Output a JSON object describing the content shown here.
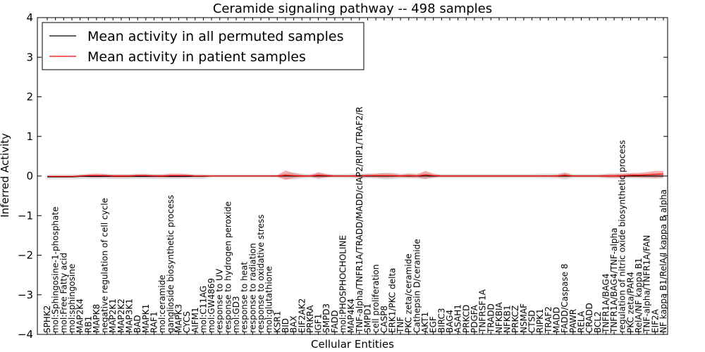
{
  "chart_data": {
    "type": "line",
    "title": "Ceramide signaling pathway -- 498 samples",
    "xlabel": "Cellular Entities",
    "ylabel": "Inferred Activity",
    "ylim": [
      -4,
      4
    ],
    "yticks": [
      "−4",
      "−3",
      "−2",
      "−1",
      "0",
      "1",
      "2",
      "3",
      "4"
    ],
    "legend_position": "top-left",
    "categories": [
      "SPHK2",
      "mol:Sphingosine-1-phosphate",
      "mol:Free Fatty acid",
      "mol:sphingosine",
      "MAP2K4",
      "RB1",
      "MAPK8",
      "negative regulation of cell cycle",
      "MAP2K1",
      "MAP2K2",
      "MAP3K1",
      "BAD",
      "MAPK1",
      "RAF1",
      "mol:ceramide",
      "ganglioside biosynthetic process",
      "MAPK3",
      "CYCS",
      "AIFM1",
      "mol:C11AG",
      "mol:GW4869",
      "response to UV",
      "response to hydrogen peroxide",
      "mol:GD3",
      "response to heat",
      "response to radiation",
      "response to oxidative stress",
      "mol:glutathione",
      "KSR1",
      "BID",
      "BAX",
      "EIF2AK2",
      "PRKRA",
      "IGF1",
      "SMPD3",
      "FADD",
      "mol:PHOSPHOCHOLINE",
      "MAP4K4",
      "TNF-alpha/TNFR1A/TRADD/MADD/cIAP2/RIP1/TRAF2/R",
      "SMPD1",
      "cell proliferation",
      "CASP8",
      "ERK1/PKC delta",
      "TNF",
      "PKC zeta/ceramide",
      "Cathepsin D/ceramide",
      "AKT1",
      "EGF",
      "BIRC3",
      "BAG4",
      "ASAH1",
      "PRKCD",
      "PDGFA",
      "TNFRSF1A",
      "TRADD",
      "NFKBIA",
      "NFKB1",
      "PRKCZ",
      "NSMAF",
      "CTSD",
      "RIPK1",
      "TRAF2",
      "MADD",
      "FADD/Caspase 8",
      "PAWR",
      "RELA",
      "CRADD",
      "BCL2",
      "TNFR1A/BAG4",
      "TNFR1A/BAG4/TNF-alpha",
      "regulation of nitric oxide biosynthetic process",
      "PKC zeta/PAR4",
      "RelA/NF kappa B1",
      "TNF-alpha/TNFR1A/FAN",
      "EIF2A",
      "NF kappa B1/RelA/I kappa B alpha"
    ],
    "series": [
      {
        "name": "Mean activity in all permuted samples",
        "color": "#000000",
        "values": [
          -0.02,
          -0.02,
          -0.02,
          -0.02,
          -0.01,
          -0.01,
          -0.01,
          -0.01,
          -0.01,
          -0.01,
          -0.01,
          -0.01,
          -0.01,
          -0.01,
          -0.01,
          -0.01,
          -0.01,
          -0.01,
          -0.01,
          -0.01,
          0.0,
          0.0,
          0.0,
          0.0,
          0.0,
          0.0,
          0.0,
          0.0,
          0.0,
          0.0,
          0.0,
          0.0,
          0.0,
          0.0,
          0.0,
          0.0,
          0.0,
          0.0,
          0.0,
          0.0,
          0.0,
          0.0,
          0.0,
          0.0,
          0.0,
          0.0,
          0.0,
          0.0,
          0.0,
          0.0,
          0.0,
          0.0,
          0.0,
          0.0,
          0.0,
          0.0,
          0.0,
          0.0,
          0.0,
          0.0,
          0.0,
          0.0,
          0.0,
          0.0,
          0.0,
          0.0,
          0.0,
          0.0,
          0.0,
          0.0,
          0.0,
          0.0,
          0.0,
          0.0,
          0.0,
          0.0
        ],
        "band": [
          0.06,
          0.06,
          0.06,
          0.06,
          0.06,
          0.06,
          0.06,
          0.06,
          0.06,
          0.06,
          0.06,
          0.06,
          0.06,
          0.06,
          0.06,
          0.06,
          0.06,
          0.06,
          0.06,
          0.06,
          0.04,
          0.04,
          0.04,
          0.04,
          0.04,
          0.04,
          0.04,
          0.04,
          0.04,
          0.07,
          0.09,
          0.06,
          0.05,
          0.07,
          0.05,
          0.05,
          0.05,
          0.06,
          0.06,
          0.06,
          0.06,
          0.08,
          0.08,
          0.06,
          0.06,
          0.06,
          0.08,
          0.05,
          0.05,
          0.05,
          0.05,
          0.05,
          0.05,
          0.05,
          0.05,
          0.05,
          0.05,
          0.05,
          0.05,
          0.05,
          0.06,
          0.06,
          0.06,
          0.09,
          0.05,
          0.05,
          0.05,
          0.05,
          0.06,
          0.06,
          0.06,
          0.06,
          0.06,
          0.06,
          0.07,
          0.06
        ]
      },
      {
        "name": "Mean activity in patient samples",
        "color": "#ff0000",
        "values": [
          -0.01,
          -0.01,
          -0.01,
          -0.01,
          0.0,
          0.01,
          0.01,
          0.01,
          0.0,
          0.0,
          0.0,
          0.01,
          0.01,
          0.0,
          0.0,
          0.01,
          0.01,
          0.01,
          0.0,
          0.0,
          0.0,
          0.0,
          0.0,
          0.0,
          0.0,
          0.0,
          0.0,
          0.0,
          0.0,
          0.02,
          0.01,
          0.0,
          0.0,
          0.02,
          0.01,
          0.0,
          0.0,
          0.0,
          0.0,
          0.01,
          0.01,
          0.01,
          0.01,
          0.0,
          0.01,
          0.0,
          0.03,
          0.01,
          0.0,
          0.0,
          0.0,
          0.0,
          0.0,
          0.0,
          0.0,
          0.0,
          0.0,
          0.0,
          0.0,
          0.0,
          0.0,
          0.0,
          0.0,
          0.02,
          0.0,
          0.0,
          0.0,
          0.0,
          0.0,
          0.0,
          0.01,
          0.02,
          0.02,
          0.03,
          0.04,
          0.05
        ],
        "band": [
          0.02,
          0.02,
          0.02,
          0.02,
          0.02,
          0.04,
          0.05,
          0.04,
          0.03,
          0.03,
          0.03,
          0.04,
          0.04,
          0.03,
          0.03,
          0.05,
          0.05,
          0.04,
          0.02,
          0.02,
          0.01,
          0.01,
          0.01,
          0.01,
          0.01,
          0.01,
          0.01,
          0.01,
          0.02,
          0.12,
          0.06,
          0.03,
          0.02,
          0.08,
          0.04,
          0.02,
          0.02,
          0.02,
          0.04,
          0.04,
          0.05,
          0.06,
          0.05,
          0.03,
          0.05,
          0.04,
          0.1,
          0.05,
          0.02,
          0.02,
          0.02,
          0.02,
          0.02,
          0.02,
          0.02,
          0.02,
          0.02,
          0.02,
          0.02,
          0.02,
          0.02,
          0.02,
          0.03,
          0.06,
          0.02,
          0.02,
          0.02,
          0.02,
          0.04,
          0.05,
          0.05,
          0.05,
          0.06,
          0.07,
          0.09,
          0.08
        ]
      }
    ]
  }
}
